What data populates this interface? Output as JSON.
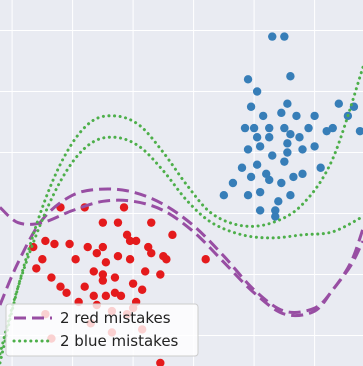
{
  "chart_data": {
    "type": "scatter",
    "title": "",
    "xlabel": "",
    "ylabel": "",
    "xlim": [
      -2.2,
      3.8
    ],
    "ylim": [
      -1.5,
      4.5
    ],
    "grid": true,
    "legend_position": "bottom-left",
    "colors": {
      "background": "#e9ebf2",
      "grid": "#ffffff",
      "red": "#e41a1c",
      "blue": "#377eb8",
      "purple": "#984ea3",
      "green": "#4daf4a"
    },
    "series": [
      {
        "class": "red",
        "points": [
          [
            -1.2,
            1.1
          ],
          [
            -0.8,
            1.1
          ],
          [
            -0.25,
            0.85
          ],
          [
            -0.5,
            0.85
          ],
          [
            -0.1,
            0.65
          ],
          [
            -0.05,
            0.55
          ],
          [
            0.3,
            0.85
          ],
          [
            0.3,
            0.35
          ],
          [
            0.65,
            0.65
          ],
          [
            -1.45,
            0.55
          ],
          [
            -1.3,
            0.5
          ],
          [
            -1.05,
            0.5
          ],
          [
            -0.75,
            0.45
          ],
          [
            -0.6,
            0.35
          ],
          [
            -0.45,
            0.2
          ],
          [
            -0.95,
            0.25
          ],
          [
            -1.5,
            0.25
          ],
          [
            -1.6,
            0.1
          ],
          [
            -1.35,
            -0.05
          ],
          [
            -1.1,
            -0.3
          ],
          [
            -0.8,
            -0.2
          ],
          [
            -0.5,
            -0.1
          ],
          [
            -0.3,
            -0.05
          ],
          [
            0.0,
            -0.15
          ],
          [
            0.2,
            0.05
          ],
          [
            0.45,
            0.0
          ],
          [
            0.55,
            0.25
          ],
          [
            -0.2,
            -0.35
          ],
          [
            -0.45,
            -0.35
          ],
          [
            -0.6,
            -0.5
          ],
          [
            -0.35,
            -0.6
          ],
          [
            -0.65,
            0.05
          ],
          [
            -0.5,
            0.0
          ],
          [
            -0.25,
            0.3
          ],
          [
            -0.05,
            0.25
          ],
          [
            -0.5,
            0.45
          ],
          [
            -0.65,
            -0.35
          ],
          [
            0.05,
            -0.45
          ],
          [
            -0.3,
            -0.3
          ],
          [
            -0.1,
            -0.65
          ],
          [
            -0.35,
            -0.95
          ],
          [
            -0.7,
            -0.8
          ],
          [
            0.15,
            -0.25
          ],
          [
            -1.45,
            -0.65
          ],
          [
            -1.35,
            -1.05
          ],
          [
            -1.65,
            0.45
          ],
          [
            -1.2,
            -0.2
          ],
          [
            -0.9,
            -0.45
          ],
          [
            0.0,
            -0.55
          ],
          [
            0.25,
            0.45
          ],
          [
            0.05,
            0.55
          ],
          [
            0.5,
            0.3
          ],
          [
            -0.15,
            1.1
          ],
          [
            0.15,
            -0.9
          ],
          [
            1.2,
            0.25
          ],
          [
            0.45,
            -1.45
          ]
        ]
      },
      {
        "class": "blue",
        "points": [
          [
            2.5,
            3.9
          ],
          [
            2.3,
            3.9
          ],
          [
            1.9,
            3.2
          ],
          [
            2.05,
            3.0
          ],
          [
            2.6,
            3.25
          ],
          [
            2.15,
            2.6
          ],
          [
            1.95,
            2.75
          ],
          [
            2.05,
            2.25
          ],
          [
            2.45,
            2.65
          ],
          [
            2.7,
            2.6
          ],
          [
            2.9,
            2.4
          ],
          [
            2.55,
            2.8
          ],
          [
            2.25,
            2.4
          ],
          [
            2.0,
            2.4
          ],
          [
            1.85,
            2.4
          ],
          [
            2.1,
            2.1
          ],
          [
            2.3,
            1.95
          ],
          [
            2.55,
            2.15
          ],
          [
            2.75,
            2.25
          ],
          [
            3.0,
            2.1
          ],
          [
            3.2,
            2.35
          ],
          [
            3.4,
            2.8
          ],
          [
            3.55,
            2.6
          ],
          [
            3.75,
            2.35
          ],
          [
            2.5,
            1.85
          ],
          [
            2.2,
            1.65
          ],
          [
            2.05,
            1.8
          ],
          [
            1.95,
            1.6
          ],
          [
            1.8,
            1.75
          ],
          [
            2.45,
            1.5
          ],
          [
            2.65,
            1.6
          ],
          [
            2.8,
            1.65
          ],
          [
            3.1,
            1.75
          ],
          [
            2.6,
            1.3
          ],
          [
            2.4,
            1.2
          ],
          [
            2.35,
            1.05
          ],
          [
            2.1,
            1.35
          ],
          [
            1.9,
            1.3
          ],
          [
            2.25,
            2.25
          ],
          [
            2.8,
            2.05
          ],
          [
            2.5,
            2.4
          ],
          [
            3.3,
            2.4
          ],
          [
            2.55,
            2.0
          ],
          [
            2.1,
            1.05
          ],
          [
            1.65,
            1.5
          ],
          [
            1.5,
            1.3
          ],
          [
            2.25,
            1.55
          ],
          [
            2.35,
            0.95
          ],
          [
            2.6,
            2.3
          ],
          [
            1.9,
            2.05
          ],
          [
            3.65,
            2.75
          ],
          [
            3.0,
            2.6
          ]
        ]
      }
    ],
    "boundaries": [
      {
        "name": "2 red mistakes",
        "color": "purple",
        "style": "dashed",
        "lines": [
          [
            [
              -2.2,
              1.1
            ],
            [
              -1.9,
              0.85
            ],
            [
              -1.5,
              0.85
            ],
            [
              -1.0,
              1.05
            ],
            [
              -0.5,
              1.2
            ],
            [
              0.0,
              1.2
            ],
            [
              0.5,
              1.05
            ],
            [
              1.0,
              0.7
            ],
            [
              1.5,
              0.2
            ],
            [
              2.0,
              -0.3
            ],
            [
              2.5,
              -0.65
            ],
            [
              3.0,
              -0.6
            ],
            [
              3.3,
              -0.25
            ],
            [
              3.6,
              0.15
            ],
            [
              3.8,
              0.55
            ]
          ],
          [
            [
              -2.2,
              -0.5
            ],
            [
              -1.9,
              0.2
            ],
            [
              -1.5,
              0.9
            ],
            [
              -1.0,
              1.3
            ],
            [
              -0.5,
              1.4
            ],
            [
              0.0,
              1.35
            ],
            [
              0.5,
              1.15
            ],
            [
              1.0,
              0.8
            ],
            [
              1.5,
              0.3
            ],
            [
              2.0,
              -0.25
            ],
            [
              2.5,
              -0.6
            ],
            [
              3.0,
              -0.55
            ],
            [
              3.3,
              -0.25
            ],
            [
              3.6,
              0.2
            ],
            [
              3.8,
              0.75
            ]
          ]
        ]
      },
      {
        "name": "2 blue mistakes",
        "color": "green",
        "style": "dotted",
        "lines": [
          [
            [
              -2.2,
              -1.45
            ],
            [
              -1.9,
              -0.2
            ],
            [
              -1.5,
              1.1
            ],
            [
              -1.1,
              2.0
            ],
            [
              -0.7,
              2.5
            ],
            [
              -0.3,
              2.6
            ],
            [
              0.1,
              2.45
            ],
            [
              0.5,
              2.0
            ],
            [
              0.9,
              1.45
            ],
            [
              1.3,
              1.0
            ],
            [
              1.8,
              0.8
            ],
            [
              2.3,
              0.85
            ],
            [
              2.8,
              1.15
            ],
            [
              3.3,
              1.9
            ],
            [
              3.8,
              3.4
            ]
          ],
          [
            [
              -2.2,
              -1.3
            ],
            [
              -1.9,
              -0.2
            ],
            [
              -1.5,
              0.9
            ],
            [
              -1.1,
              1.7
            ],
            [
              -0.7,
              2.15
            ],
            [
              -0.3,
              2.25
            ],
            [
              0.1,
              2.1
            ],
            [
              0.5,
              1.7
            ],
            [
              0.9,
              1.2
            ],
            [
              1.3,
              0.85
            ],
            [
              1.8,
              0.65
            ],
            [
              2.3,
              0.6
            ],
            [
              2.8,
              0.65
            ],
            [
              3.3,
              0.7
            ],
            [
              3.8,
              0.95
            ]
          ]
        ]
      }
    ],
    "legend": [
      {
        "label": "2 red mistakes",
        "color": "purple",
        "style": "dashed"
      },
      {
        "label": "2 blue mistakes",
        "color": "green",
        "style": "dotted"
      }
    ]
  }
}
